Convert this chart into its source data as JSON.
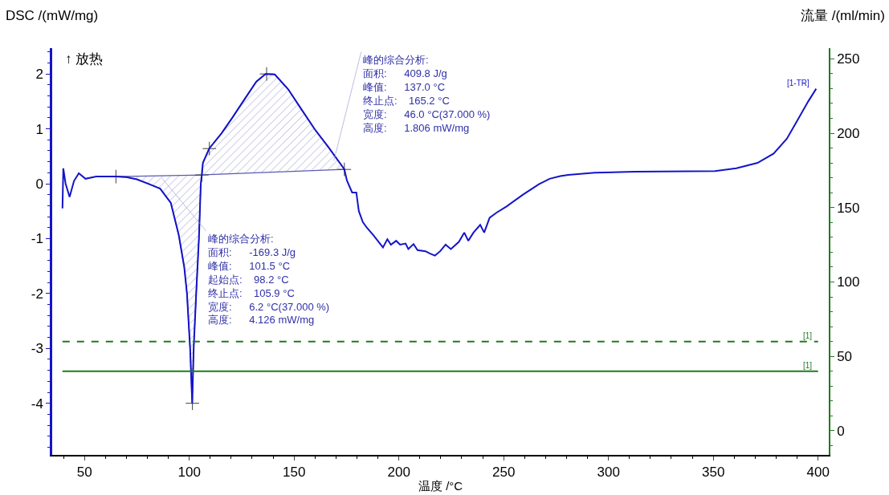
{
  "chart_data": {
    "type": "line",
    "ylabel": "DSC /(mW/mg)",
    "y2label": "流量 /(ml/min)",
    "xlabel": "温度 /°C",
    "annotations": [
      "↑ 放热",
      {
        "text": "峰的综合分析:\n面积: -169.3 J/g\n峰值: 101.5 °C\n起始点: 98.2 °C\n终止点: 105.9 °C\n宽度: 6.2 °C(37.000 %)\n高度: 4.126 mW/mg",
        "x": 87,
        "y": 0.1
      },
      {
        "text": "峰的综合分析:\n面积: 409.8 J/g\n峰值: 137.0 °C\n终止点: 165.2 °C\n宽度: 46.0 °C(37.000 %)\n高度: 1.806 mW/mg",
        "x": 169,
        "y": 0.42
      }
    ],
    "xlim": [
      34.6,
      405.1
    ],
    "xticks": [
      50,
      100,
      150,
      200,
      250,
      300,
      350,
      400
    ],
    "ylim": [
      -4.94,
      2.47
    ],
    "yticks": [
      -4,
      -3,
      -2,
      -1,
      0,
      1,
      2
    ],
    "y2lim": [
      -16.2,
      257.2
    ],
    "y2ticks": [
      0,
      50,
      100,
      150,
      200,
      250
    ],
    "legend": false,
    "marker": "none",
    "line_style": "solid",
    "series": [
      {
        "type": "area",
        "color": "#5a5ab4",
        "x": [
          65,
          70,
          75,
          81,
          86.1,
          91.2,
          95,
          97.6,
          98.9,
          100.4,
          101.4,
          102.1,
          103.3,
          104.6,
          105.5,
          106
        ],
        "values": [
          0.13,
          0.12,
          0.08,
          -0.01,
          -0.09,
          -0.35,
          -0.94,
          -1.52,
          -2,
          -3,
          -4.0,
          -3,
          -2,
          -1,
          0,
          0.16
        ]
      },
      {
        "type": "area",
        "color": "#5a5ab4",
        "x": [
          106,
          106.5,
          109.5,
          115.4,
          120.5,
          126.9,
          132,
          136.4,
          140.8,
          147.2,
          153.6,
          159.9,
          166.3,
          173.3,
          174
        ],
        "values": [
          0.16,
          0.38,
          0.64,
          0.92,
          1.2,
          1.57,
          1.86,
          2.0,
          1.99,
          1.72,
          1.35,
          0.99,
          0.67,
          0.3,
          0.26
        ]
      },
      {
        "type": "scatter",
        "color": "#404040",
        "marker": "cross",
        "x": [
          65,
          101.5,
          106,
          109.6,
          136.9,
          174
        ],
        "values": [
          0.13,
          -4.0,
          0.16,
          0.64,
          2.0,
          0.26
        ]
      },
      {
        "name": "[1-TR]",
        "color": "#1414c8",
        "x": [
          39.5,
          39.9,
          41,
          42.9,
          45,
          47.3,
          50.5,
          55.6,
          65,
          70,
          75,
          81,
          86.1,
          91.2,
          95,
          97.6,
          98.9,
          100.4,
          101.4,
          102.1,
          103.3,
          104.6,
          105.5,
          106,
          106.5,
          109.5,
          115.4,
          120.5,
          126.9,
          132,
          136.4,
          140.8,
          147.2,
          153.6,
          159.9,
          166.3,
          173.3,
          174,
          175.2,
          177.7,
          179.7,
          180.9,
          182.8,
          184.7,
          187.9,
          192.4,
          194.5,
          196.2,
          198.7,
          200.6,
          203.2,
          204.5,
          207,
          208.9,
          212.7,
          214.7,
          217.2,
          219.7,
          222.3,
          224.8,
          228.6,
          231.2,
          233.1,
          235.6,
          238.8,
          240.7,
          243.3,
          246.5,
          251.5,
          259.2,
          266.8,
          271.9,
          277,
          280.8,
          293.5,
          312.6,
          350.8,
          361,
          371.1,
          378.8,
          385.1,
          390.2,
          395.3,
          399.1
        ],
        "values": [
          -0.45,
          0.28,
          0.0,
          -0.24,
          0.05,
          0.19,
          0.09,
          0.13,
          0.13,
          0.12,
          0.08,
          -0.01,
          -0.09,
          -0.35,
          -0.94,
          -1.52,
          -2,
          -3,
          -4.0,
          -3,
          -2,
          -1,
          0,
          0.16,
          0.38,
          0.64,
          0.92,
          1.2,
          1.57,
          1.86,
          2.0,
          1.99,
          1.72,
          1.35,
          0.99,
          0.67,
          0.3,
          0.26,
          0.06,
          -0.16,
          -0.16,
          -0.5,
          -0.7,
          -0.8,
          -0.94,
          -1.16,
          -1.01,
          -1.11,
          -1.04,
          -1.11,
          -1.09,
          -1.19,
          -1.1,
          -1.21,
          -1.23,
          -1.27,
          -1.31,
          -1.23,
          -1.11,
          -1.19,
          -1.06,
          -0.89,
          -1.04,
          -0.89,
          -0.75,
          -0.89,
          -0.62,
          -0.53,
          -0.41,
          -0.2,
          -0.01,
          0.09,
          0.14,
          0.16,
          0.2,
          0.22,
          0.23,
          0.28,
          0.38,
          0.55,
          0.82,
          1.16,
          1.5,
          1.73
        ]
      },
      {
        "name": "[1]",
        "color": "#1e7b1e",
        "axis": "y2",
        "line_style": "dashed",
        "x": [
          39.5,
          400
        ],
        "values": [
          60,
          60
        ]
      },
      {
        "name": "[1]",
        "color": "#1e7b1e",
        "axis": "y2",
        "x": [
          39.5,
          400
        ],
        "values": [
          40,
          40
        ]
      }
    ]
  }
}
